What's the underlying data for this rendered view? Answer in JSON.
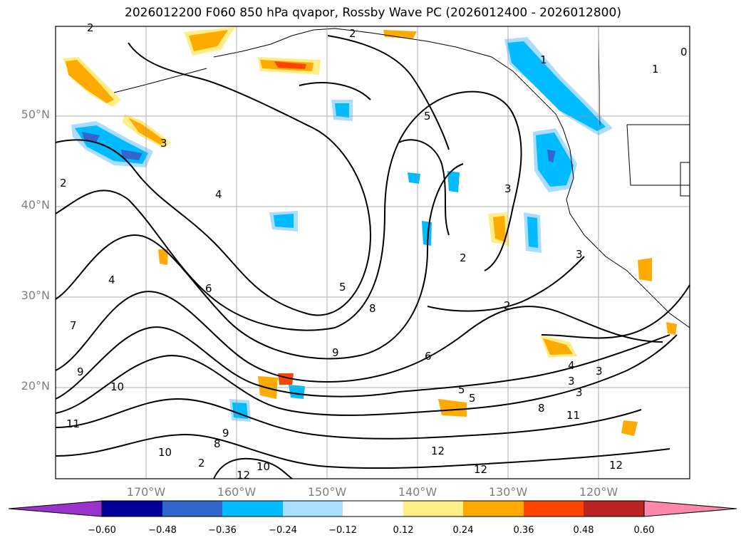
{
  "title": "2026012200 F060 850 hPa qvapor, Rossby Wave PC (2026012400 - 2026012800)",
  "lat_labels": [
    "50°N",
    "40°N",
    "30°N",
    "20°N"
  ],
  "lon_labels": [
    "170°W",
    "160°W",
    "150°W",
    "140°W",
    "130°W",
    "120°W"
  ],
  "colorbar": {
    "ticks": [
      "−0.60",
      "−0.48",
      "−0.36",
      "−0.24",
      "−0.12",
      "0.12",
      "0.24",
      "0.36",
      "0.48",
      "0.60"
    ],
    "colors": [
      "#9933cc",
      "#000099",
      "#3366cc",
      "#00bbff",
      "#aaddff",
      "#ffffff",
      "#ffee88",
      "#ffaa00",
      "#ff4400",
      "#bb2222",
      "#ff88aa"
    ]
  },
  "contour_labels": [
    "2",
    "2",
    "1",
    "1",
    "0",
    "3",
    "2",
    "5",
    "3",
    "4",
    "3",
    "4",
    "6",
    "5",
    "8",
    "2",
    "2",
    "6",
    "9",
    "7",
    "5",
    "5",
    "4",
    "3",
    "3",
    "3",
    "8",
    "9",
    "10",
    "11",
    "12",
    "12",
    "9",
    "8",
    "10",
    "11",
    "12",
    "10",
    "12",
    "2"
  ]
}
